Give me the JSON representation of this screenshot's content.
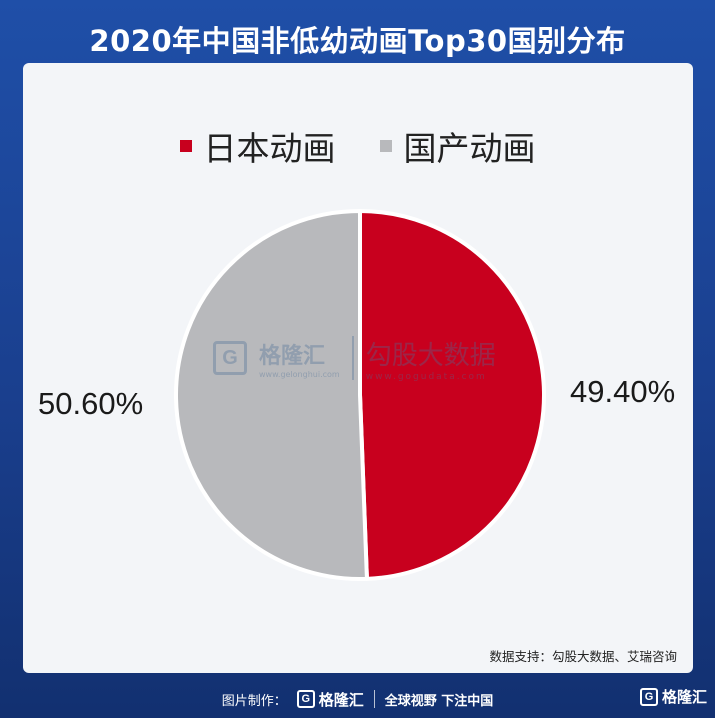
{
  "title": "2020年中国非低幼动画Top30国别分布",
  "source": "数据支持：勾股大数据、艾瑞咨询",
  "footer": {
    "made_by": "图片制作：",
    "brand": "格隆汇",
    "slogan": "全球视野 下注中国"
  },
  "watermark": {
    "brand": "格隆汇",
    "brand_url": "www.gelonghui.com",
    "partner": "勾股大数据",
    "partner_url": "www.gogudata.com"
  },
  "colors": {
    "japan": "#c8001e",
    "domestic": "#b8b9bc"
  },
  "chart_data": {
    "type": "pie",
    "title": "2020年中国非低幼动画Top30国别分布",
    "legend_position": "top",
    "slices": [
      {
        "name": "日本动画",
        "value": 49.4,
        "label": "49.40%",
        "color": "#c8001e"
      },
      {
        "name": "国产动画",
        "value": 50.6,
        "label": "50.60%",
        "color": "#b8b9bc"
      }
    ]
  }
}
